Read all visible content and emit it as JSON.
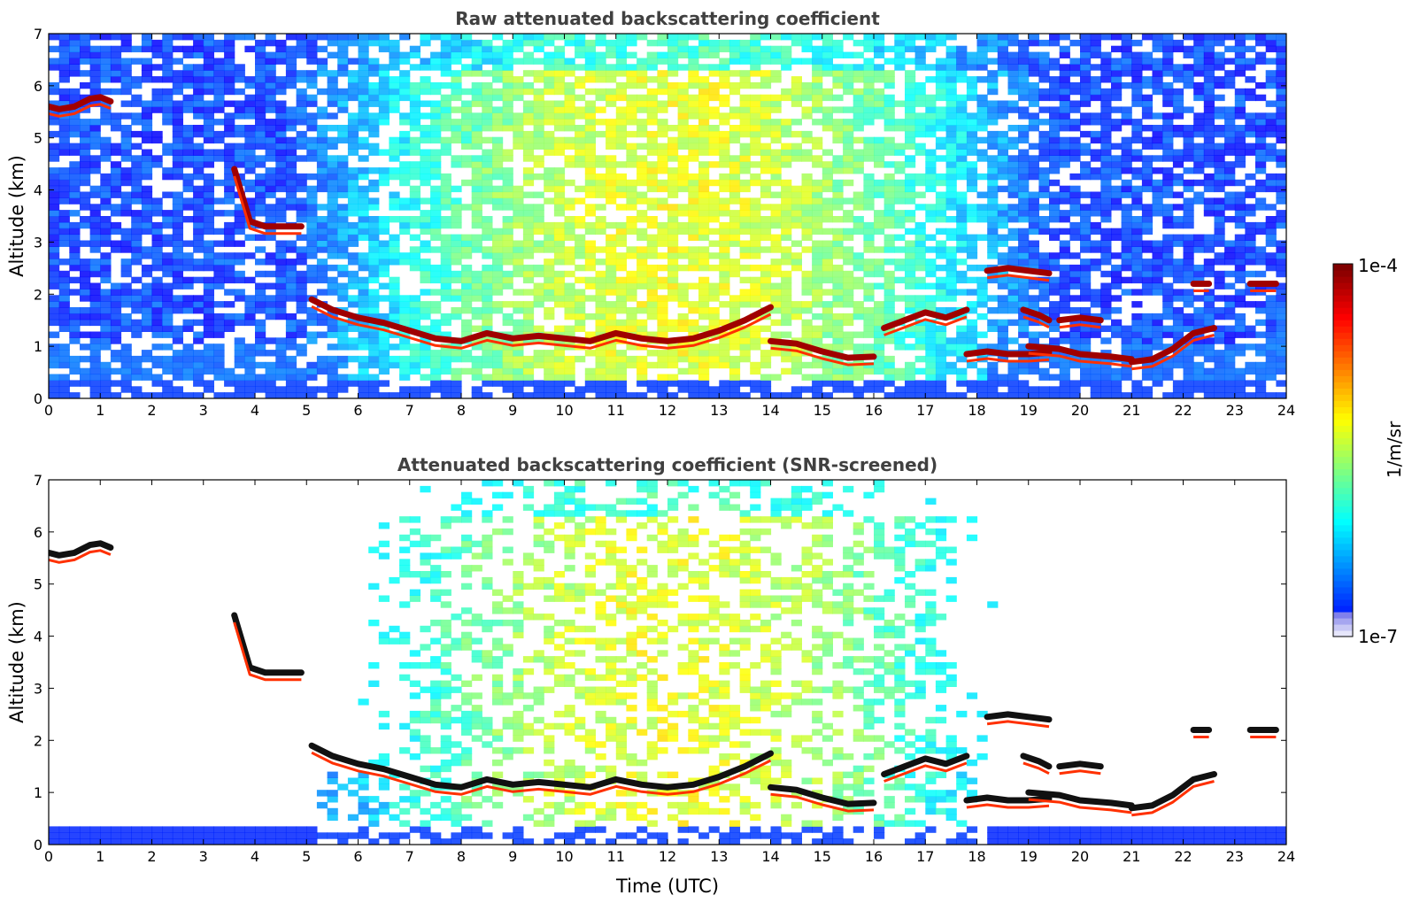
{
  "figure": {
    "xlabel": "Time (UTC)",
    "colorbar": {
      "label": "1/m/sr",
      "max_label": "1e-4",
      "min_label": "1e-7",
      "range": [
        1e-07,
        0.0001
      ],
      "scale": "log",
      "colormap": "jet"
    }
  },
  "chart_data": [
    {
      "type": "heatmap",
      "title": "Raw attenuated backscattering coefficient",
      "xlabel": "",
      "ylabel": "Altitude (km)",
      "xlim": [
        0,
        24
      ],
      "ylim": [
        0,
        7
      ],
      "xticks": [
        "0",
        "1",
        "2",
        "3",
        "4",
        "5",
        "6",
        "7",
        "8",
        "9",
        "10",
        "11",
        "12",
        "13",
        "14",
        "15",
        "16",
        "17",
        "18",
        "19",
        "20",
        "21",
        "22",
        "23",
        "24"
      ],
      "yticks": [
        "0",
        "1",
        "2",
        "3",
        "4",
        "5",
        "6",
        "7"
      ],
      "screened": false,
      "cloud_layers": [
        {
          "time": [
            0.0,
            0.2,
            0.5,
            0.8,
            1.0,
            1.2
          ],
          "altitude": [
            5.6,
            5.55,
            5.6,
            5.75,
            5.78,
            5.7
          ]
        },
        {
          "time": [
            3.6,
            3.9,
            4.2,
            4.5,
            4.7,
            4.9
          ],
          "altitude": [
            4.4,
            3.4,
            3.3,
            3.3,
            3.3,
            3.3
          ]
        },
        {
          "time": [
            5.1,
            5.5,
            6.0,
            6.5,
            7.0,
            7.5,
            8.0,
            8.5,
            9.0,
            9.5,
            10.0,
            10.5,
            11.0,
            11.5,
            12.0,
            12.5,
            13.0,
            13.5,
            14.0
          ],
          "altitude": [
            1.9,
            1.7,
            1.55,
            1.45,
            1.3,
            1.15,
            1.1,
            1.25,
            1.15,
            1.2,
            1.15,
            1.1,
            1.25,
            1.15,
            1.1,
            1.15,
            1.3,
            1.5,
            1.75
          ]
        },
        {
          "time": [
            14.0,
            14.5,
            15.0,
            15.5,
            16.0
          ],
          "altitude": [
            1.1,
            1.05,
            0.9,
            0.78,
            0.8
          ]
        },
        {
          "time": [
            16.2,
            16.6,
            17.0,
            17.4,
            17.8
          ],
          "altitude": [
            1.35,
            1.5,
            1.65,
            1.55,
            1.7
          ]
        },
        {
          "time": [
            17.8,
            18.2,
            18.6,
            19.0,
            19.4
          ],
          "altitude": [
            0.85,
            0.9,
            0.85,
            0.85,
            0.88
          ]
        },
        {
          "time": [
            18.2,
            18.6,
            19.0,
            19.4
          ],
          "altitude": [
            2.45,
            2.5,
            2.45,
            2.4
          ]
        },
        {
          "time": [
            18.9,
            19.2,
            19.4
          ],
          "altitude": [
            1.7,
            1.6,
            1.5
          ]
        },
        {
          "time": [
            19.6,
            20.0,
            20.4
          ],
          "altitude": [
            1.5,
            1.55,
            1.5
          ]
        },
        {
          "time": [
            19.0,
            19.6,
            20.0,
            20.6,
            21.0
          ],
          "altitude": [
            1.0,
            0.95,
            0.85,
            0.8,
            0.75
          ]
        },
        {
          "time": [
            21.0,
            21.4,
            21.8,
            22.2,
            22.6
          ],
          "altitude": [
            0.7,
            0.75,
            0.95,
            1.25,
            1.35
          ]
        },
        {
          "time": [
            22.2,
            22.5
          ],
          "altitude": [
            2.2,
            2.2
          ]
        },
        {
          "time": [
            23.3,
            23.8
          ],
          "altitude": [
            2.2,
            2.2
          ]
        }
      ]
    },
    {
      "type": "heatmap",
      "title": "Attenuated backscattering coefficient (SNR-screened)",
      "xlabel": "Time (UTC)",
      "ylabel": "Altitude (km)",
      "xlim": [
        0,
        24
      ],
      "ylim": [
        0,
        7
      ],
      "xticks": [
        "0",
        "1",
        "2",
        "3",
        "4",
        "5",
        "6",
        "7",
        "8",
        "9",
        "10",
        "11",
        "12",
        "13",
        "14",
        "15",
        "16",
        "17",
        "18",
        "19",
        "20",
        "21",
        "22",
        "23",
        "24"
      ],
      "yticks": [
        "0",
        "1",
        "2",
        "3",
        "4",
        "5",
        "6",
        "7"
      ],
      "screened": true
    }
  ]
}
